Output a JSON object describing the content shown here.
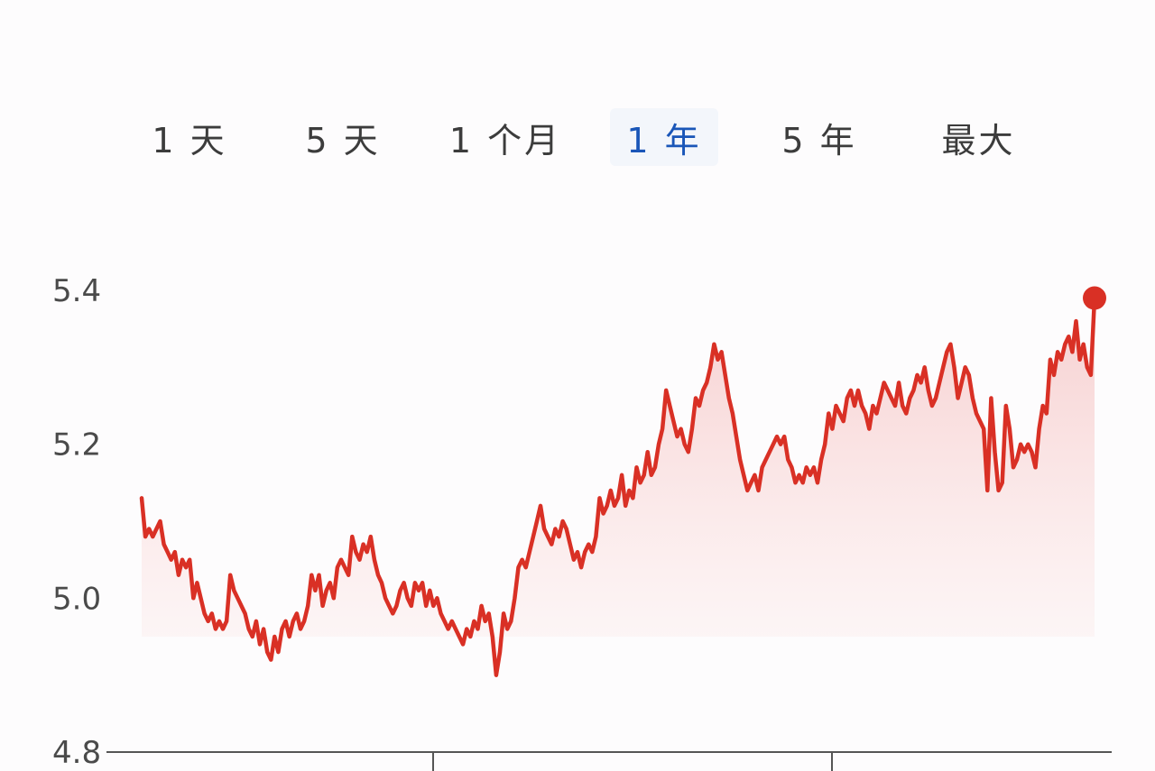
{
  "tabs": [
    {
      "label": "1 天",
      "active": false
    },
    {
      "label": "5 天",
      "active": false
    },
    {
      "label": "1 个月",
      "active": false
    },
    {
      "label": "1 年",
      "active": true
    },
    {
      "label": "5 年",
      "active": false
    },
    {
      "label": "最大",
      "active": false
    }
  ],
  "colors": {
    "line": "#d93025",
    "fill_top": "#f6caca",
    "fill_bottom": "#fdf3f3",
    "active_tab": "#1a56b8",
    "axis": "#555555"
  },
  "chart_data": {
    "type": "area",
    "title": "",
    "xlabel": "",
    "ylabel": "",
    "ylim": [
      4.8,
      5.4
    ],
    "yticks": [
      "5.4",
      "5.2",
      "5.0",
      "4.8"
    ],
    "grid": false,
    "series": [
      {
        "values": [
          5.13,
          5.08,
          5.09,
          5.08,
          5.09,
          5.1,
          5.07,
          5.06,
          5.05,
          5.06,
          5.03,
          5.05,
          5.04,
          5.05,
          5.0,
          5.02,
          5.0,
          4.98,
          4.97,
          4.98,
          4.96,
          4.97,
          4.96,
          4.97,
          5.03,
          5.01,
          5.0,
          4.99,
          4.98,
          4.96,
          4.95,
          4.97,
          4.94,
          4.96,
          4.93,
          4.92,
          4.95,
          4.93,
          4.96,
          4.97,
          4.95,
          4.97,
          4.98,
          4.96,
          4.97,
          4.99,
          5.03,
          5.01,
          5.03,
          4.99,
          5.01,
          5.02,
          5.0,
          5.04,
          5.05,
          5.04,
          5.03,
          5.08,
          5.06,
          5.05,
          5.07,
          5.06,
          5.08,
          5.05,
          5.03,
          5.02,
          5.0,
          4.99,
          4.98,
          4.99,
          5.01,
          5.02,
          5.0,
          4.99,
          5.02,
          5.01,
          5.02,
          4.99,
          5.01,
          4.99,
          5.0,
          4.98,
          4.97,
          4.96,
          4.97,
          4.96,
          4.95,
          4.94,
          4.96,
          4.95,
          4.97,
          4.96,
          4.99,
          4.97,
          4.98,
          4.95,
          4.9,
          4.93,
          4.98,
          4.96,
          4.97,
          5.0,
          5.04,
          5.05,
          5.04,
          5.06,
          5.08,
          5.1,
          5.12,
          5.09,
          5.08,
          5.07,
          5.09,
          5.08,
          5.1,
          5.09,
          5.07,
          5.05,
          5.06,
          5.04,
          5.06,
          5.07,
          5.06,
          5.08,
          5.13,
          5.11,
          5.12,
          5.14,
          5.12,
          5.13,
          5.16,
          5.12,
          5.14,
          5.13,
          5.17,
          5.15,
          5.16,
          5.19,
          5.16,
          5.17,
          5.2,
          5.22,
          5.27,
          5.25,
          5.23,
          5.21,
          5.22,
          5.2,
          5.19,
          5.22,
          5.26,
          5.25,
          5.27,
          5.28,
          5.3,
          5.33,
          5.31,
          5.32,
          5.29,
          5.26,
          5.24,
          5.21,
          5.18,
          5.16,
          5.14,
          5.15,
          5.16,
          5.14,
          5.17,
          5.18,
          5.19,
          5.2,
          5.21,
          5.2,
          5.21,
          5.18,
          5.17,
          5.15,
          5.16,
          5.15,
          5.17,
          5.16,
          5.17,
          5.15,
          5.18,
          5.2,
          5.24,
          5.22,
          5.25,
          5.24,
          5.23,
          5.26,
          5.27,
          5.25,
          5.27,
          5.25,
          5.24,
          5.22,
          5.25,
          5.24,
          5.26,
          5.28,
          5.27,
          5.26,
          5.25,
          5.28,
          5.25,
          5.24,
          5.26,
          5.27,
          5.29,
          5.28,
          5.3,
          5.27,
          5.25,
          5.26,
          5.28,
          5.3,
          5.32,
          5.33,
          5.3,
          5.26,
          5.28,
          5.3,
          5.29,
          5.26,
          5.24,
          5.23,
          5.22,
          5.14,
          5.26,
          5.19,
          5.14,
          5.15,
          5.25,
          5.22,
          5.17,
          5.18,
          5.2,
          5.19,
          5.2,
          5.19,
          5.17,
          5.22,
          5.25,
          5.24,
          5.31,
          5.29,
          5.32,
          5.31,
          5.33,
          5.34,
          5.32,
          5.36,
          5.31,
          5.33,
          5.3,
          5.29,
          5.39
        ]
      }
    ],
    "last_point_marker": true
  }
}
